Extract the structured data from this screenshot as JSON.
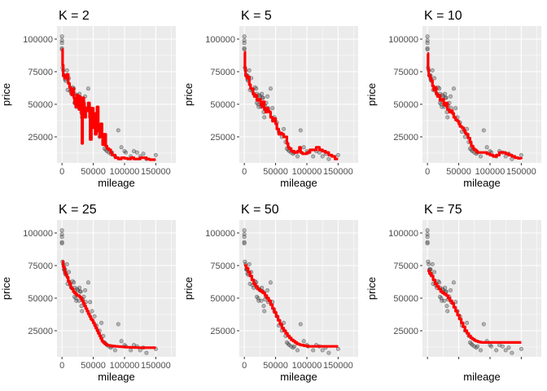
{
  "chart_data": [
    {
      "type": "scatter",
      "title": "K = 2",
      "xlabel": "mileage",
      "ylabel": "price",
      "xlim": [
        -8000,
        182000
      ],
      "ylim": [
        5000,
        110000
      ],
      "xticks": [
        0,
        50000,
        100000,
        150000
      ],
      "xtick_labels": [
        "0",
        "50000",
        "100000",
        "150000"
      ],
      "yticks": [
        25000,
        50000,
        75000,
        100000
      ],
      "ytick_labels": [
        "25000",
        "50000",
        "75000",
        "100000"
      ],
      "grid": true
    },
    {
      "type": "scatter",
      "title": "K = 5",
      "xlabel": "mileage",
      "ylabel": "price",
      "xlim": [
        -8000,
        182000
      ],
      "ylim": [
        5000,
        110000
      ],
      "xticks": [
        0,
        50000,
        100000,
        150000
      ],
      "xtick_labels": [
        "0",
        "50000",
        "100000",
        "150000"
      ],
      "yticks": [
        25000,
        50000,
        75000,
        100000
      ],
      "ytick_labels": [
        "25000",
        "50000",
        "75000",
        "100000"
      ],
      "grid": true
    },
    {
      "type": "scatter",
      "title": "K = 10",
      "xlabel": "mileage",
      "ylabel": "price",
      "xlim": [
        -8000,
        182000
      ],
      "ylim": [
        5000,
        110000
      ],
      "xticks": [
        0,
        50000,
        100000,
        150000
      ],
      "xtick_labels": [
        "0",
        "50000",
        "100000",
        "150000"
      ],
      "yticks": [
        25000,
        50000,
        75000,
        100000
      ],
      "ytick_labels": [
        "25000",
        "50000",
        "75000",
        "100000"
      ],
      "grid": true
    },
    {
      "type": "scatter",
      "title": "K = 25",
      "xlabel": "mileage",
      "ylabel": "price",
      "xlim": [
        -8000,
        182000
      ],
      "ylim": [
        5000,
        110000
      ],
      "xticks": [
        0,
        50000,
        100000,
        150000
      ],
      "xtick_labels": [
        "0",
        "50000",
        "100000",
        "150000"
      ],
      "yticks": [
        25000,
        50000,
        75000,
        100000
      ],
      "ytick_labels": [
        "25000",
        "50000",
        "75000",
        "100000"
      ],
      "grid": true
    },
    {
      "type": "scatter",
      "title": "K = 50",
      "xlabel": "mileage",
      "ylabel": "price",
      "xlim": [
        -8000,
        182000
      ],
      "ylim": [
        5000,
        110000
      ],
      "xticks": [
        0,
        50000,
        100000,
        150000
      ],
      "xtick_labels": [
        "0",
        "50000",
        "100000",
        "150000"
      ],
      "yticks": [
        25000,
        50000,
        75000,
        100000
      ],
      "ytick_labels": [
        "25000",
        "50000",
        "75000",
        "100000"
      ],
      "grid": true
    },
    {
      "type": "scatter",
      "title": "K = 75",
      "xlabel": "mileage",
      "ylabel": "price",
      "xlim": [
        -8000,
        182000
      ],
      "ylim": [
        5000,
        110000
      ],
      "xticks": [
        0,
        50000,
        100000,
        150000
      ],
      "xtick_labels": [
        "",
        "",
        "",
        ""
      ],
      "yticks": [
        25000,
        50000,
        75000,
        100000
      ],
      "ytick_labels": [
        "25000",
        "50000",
        "75000",
        "100000"
      ],
      "grid": true
    }
  ],
  "points": {
    "x": [
      0,
      0,
      0,
      0,
      0,
      1000,
      2000,
      3000,
      4000,
      5000,
      5000,
      6000,
      8000,
      9000,
      11000,
      13000,
      15000,
      17000,
      19000,
      20000,
      20000,
      22000,
      23000,
      24000,
      25000,
      27000,
      28000,
      29000,
      30000,
      31000,
      32000,
      33000,
      35000,
      37000,
      38000,
      42000,
      45000,
      48000,
      52000,
      55000,
      60000,
      63000,
      66000,
      68000,
      70000,
      72000,
      75000,
      78000,
      80000,
      85000,
      90000,
      95000,
      100000,
      102000,
      110000,
      115000,
      120000,
      125000,
      130000,
      135000,
      150000
    ],
    "y": [
      102000,
      99000,
      97000,
      93000,
      92000,
      78000,
      76000,
      72000,
      72000,
      72000,
      69000,
      68000,
      76000,
      61000,
      70000,
      60000,
      58000,
      63000,
      62000,
      58000,
      51000,
      50000,
      48000,
      57000,
      56000,
      48000,
      58000,
      55000,
      55000,
      44000,
      40000,
      49000,
      51000,
      56000,
      47000,
      62000,
      47000,
      40000,
      36000,
      29000,
      25000,
      31000,
      21000,
      16000,
      15000,
      14000,
      13000,
      12000,
      13000,
      10000,
      30000,
      17000,
      14000,
      13000,
      10000,
      14000,
      13000,
      10000,
      12000,
      8000,
      11000
    ],
    "color": "#333333"
  },
  "fits": {
    "color": "#ff0000",
    "series": [
      {
        "x": [
          0,
          1000,
          2000,
          4000,
          6000,
          8000,
          10000,
          12000,
          14000,
          15000,
          16000,
          18000,
          19000,
          20000,
          22000,
          23000,
          24000,
          26000,
          27000,
          28000,
          29000,
          30000,
          31000,
          32000,
          33000,
          34000,
          35000,
          36000,
          37000,
          38000,
          40000,
          42000,
          44000,
          45000,
          47000,
          48000,
          50000,
          52000,
          53000,
          55000,
          56000,
          58000,
          60000,
          62000,
          64000,
          65000,
          67000,
          70000,
          72000,
          75000,
          78000,
          80000,
          85000,
          90000,
          95000,
          100000,
          105000,
          110000,
          115000,
          120000,
          125000,
          130000,
          135000,
          140000,
          145000,
          150000
        ],
        "y": [
          92000,
          80000,
          72000,
          70000,
          72000,
          73000,
          66000,
          63000,
          60000,
          58000,
          57000,
          62000,
          55000,
          51000,
          48000,
          52000,
          57000,
          50000,
          46000,
          56000,
          55000,
          48000,
          42000,
          20000,
          48000,
          55000,
          50000,
          44000,
          40000,
          47000,
          45000,
          51000,
          40000,
          23000,
          45000,
          47000,
          32000,
          43000,
          27000,
          43000,
          48000,
          30000,
          25000,
          35000,
          25000,
          19000,
          27000,
          18000,
          16000,
          15000,
          13000,
          11000,
          9000,
          8000,
          9000,
          8500,
          8000,
          9000,
          8000,
          8000,
          9000,
          9000,
          8000,
          7500,
          7500,
          7500
        ]
      },
      {
        "x": [
          0,
          1000,
          2000,
          4000,
          6000,
          8000,
          10000,
          12000,
          14000,
          16000,
          18000,
          20000,
          22000,
          24000,
          26000,
          28000,
          30000,
          32000,
          34000,
          36000,
          38000,
          40000,
          42000,
          45000,
          48000,
          50000,
          52000,
          55000,
          58000,
          60000,
          63000,
          65000,
          68000,
          70000,
          72000,
          75000,
          78000,
          80000,
          83000,
          85000,
          88000,
          90000,
          93000,
          95000,
          100000,
          105000,
          110000,
          115000,
          120000,
          125000,
          130000,
          135000,
          140000,
          145000,
          150000
        ],
        "y": [
          90000,
          78000,
          72000,
          70000,
          71000,
          65000,
          62000,
          62000,
          58000,
          56000,
          57000,
          53000,
          53000,
          54000,
          50000,
          48000,
          52000,
          46000,
          44000,
          47000,
          45000,
          44000,
          40000,
          37000,
          39000,
          35000,
          31000,
          27000,
          28000,
          27000,
          25000,
          25000,
          20000,
          17000,
          16000,
          14000,
          14000,
          13000,
          13000,
          14000,
          17000,
          13000,
          12000,
          12000,
          13000,
          15000,
          15000,
          17000,
          15000,
          14000,
          13000,
          11000,
          10000,
          8000,
          8000
        ]
      },
      {
        "x": [
          0,
          1000,
          2000,
          4000,
          6000,
          8000,
          10000,
          12000,
          14000,
          16000,
          18000,
          20000,
          22000,
          24000,
          26000,
          28000,
          30000,
          32000,
          35000,
          38000,
          40000,
          42000,
          45000,
          48000,
          50000,
          52000,
          55000,
          58000,
          60000,
          62000,
          65000,
          68000,
          70000,
          73000,
          75000,
          78000,
          80000,
          85000,
          90000,
          95000,
          100000,
          105000,
          110000,
          115000,
          120000,
          125000,
          130000,
          135000,
          140000,
          145000,
          150000
        ],
        "y": [
          89000,
          77000,
          72000,
          70000,
          68000,
          64000,
          61000,
          63000,
          58000,
          56000,
          57000,
          53000,
          53000,
          54000,
          50000,
          49000,
          51000,
          46000,
          44000,
          45000,
          43000,
          40000,
          38000,
          37000,
          35000,
          33000,
          32000,
          30000,
          28000,
          27000,
          24000,
          21000,
          18000,
          16000,
          15000,
          14000,
          13000,
          13000,
          13000,
          12000,
          11000,
          10000,
          11000,
          13000,
          13000,
          12000,
          11000,
          10000,
          9000,
          8500,
          8000
        ]
      },
      {
        "x": [
          0,
          2000,
          4000,
          6000,
          8000,
          10000,
          12000,
          14000,
          16000,
          18000,
          20000,
          22000,
          24000,
          26000,
          28000,
          30000,
          32000,
          34000,
          36000,
          38000,
          40000,
          42000,
          44000,
          46000,
          48000,
          50000,
          52000,
          54000,
          56000,
          58000,
          60000,
          62000,
          64000,
          66000,
          68000,
          70000,
          72000,
          74000,
          76000,
          78000,
          80000,
          85000,
          90000,
          95000,
          100000,
          105000,
          110000,
          115000,
          120000,
          125000,
          130000,
          135000,
          140000,
          145000,
          150000
        ],
        "y": [
          78000,
          74000,
          70000,
          68000,
          66000,
          63000,
          61000,
          58000,
          57000,
          55000,
          54000,
          53000,
          52000,
          52000,
          51000,
          50000,
          48000,
          46000,
          44000,
          42000,
          40000,
          38000,
          36000,
          34000,
          33000,
          31000,
          29000,
          27000,
          25000,
          23000,
          21000,
          19000,
          17000,
          16000,
          15000,
          14500,
          14000,
          13800,
          13600,
          13400,
          13200,
          13000,
          12800,
          12600,
          12400,
          12300,
          12200,
          12100,
          12000,
          12000,
          12000,
          12000,
          12000,
          12000,
          12000
        ]
      },
      {
        "x": [
          0,
          3000,
          6000,
          9000,
          12000,
          15000,
          18000,
          21000,
          24000,
          27000,
          30000,
          33000,
          36000,
          39000,
          42000,
          45000,
          48000,
          51000,
          54000,
          57000,
          60000,
          63000,
          66000,
          69000,
          72000,
          75000,
          78000,
          81000,
          84000,
          87000,
          90000,
          95000,
          100000,
          105000,
          110000,
          115000,
          120000,
          125000,
          130000,
          135000,
          140000,
          145000,
          150000
        ],
        "y": [
          75000,
          73000,
          70000,
          67000,
          64000,
          61000,
          59000,
          57000,
          56000,
          55000,
          54000,
          52000,
          50000,
          48000,
          45000,
          42000,
          39000,
          36000,
          33000,
          30000,
          27000,
          25000,
          23000,
          21000,
          19500,
          18000,
          17000,
          16000,
          15000,
          14500,
          14000,
          13500,
          13000,
          13000,
          13000,
          13000,
          13000,
          13000,
          13000,
          13000,
          13000,
          13000,
          13000
        ]
      },
      {
        "x": [
          0,
          3000,
          6000,
          9000,
          12000,
          15000,
          18000,
          21000,
          24000,
          27000,
          30000,
          33000,
          36000,
          39000,
          42000,
          45000,
          48000,
          51000,
          54000,
          57000,
          60000,
          63000,
          66000,
          69000,
          72000,
          75000,
          78000,
          81000,
          84000,
          87000,
          90000,
          95000,
          100000,
          105000,
          110000,
          115000,
          120000,
          125000,
          130000,
          135000,
          140000,
          145000,
          150000
        ],
        "y": [
          71000,
          69000,
          67000,
          64000,
          61000,
          59000,
          57000,
          55000,
          54000,
          53000,
          52000,
          50000,
          48000,
          46000,
          43000,
          40000,
          37000,
          34000,
          31000,
          28000,
          25000,
          23000,
          21000,
          19500,
          18500,
          17500,
          17000,
          16500,
          16200,
          16000,
          16000,
          16000,
          16000,
          16000,
          16000,
          16000,
          16000,
          16000,
          16000,
          16000,
          16000,
          16000,
          16000
        ]
      }
    ]
  }
}
